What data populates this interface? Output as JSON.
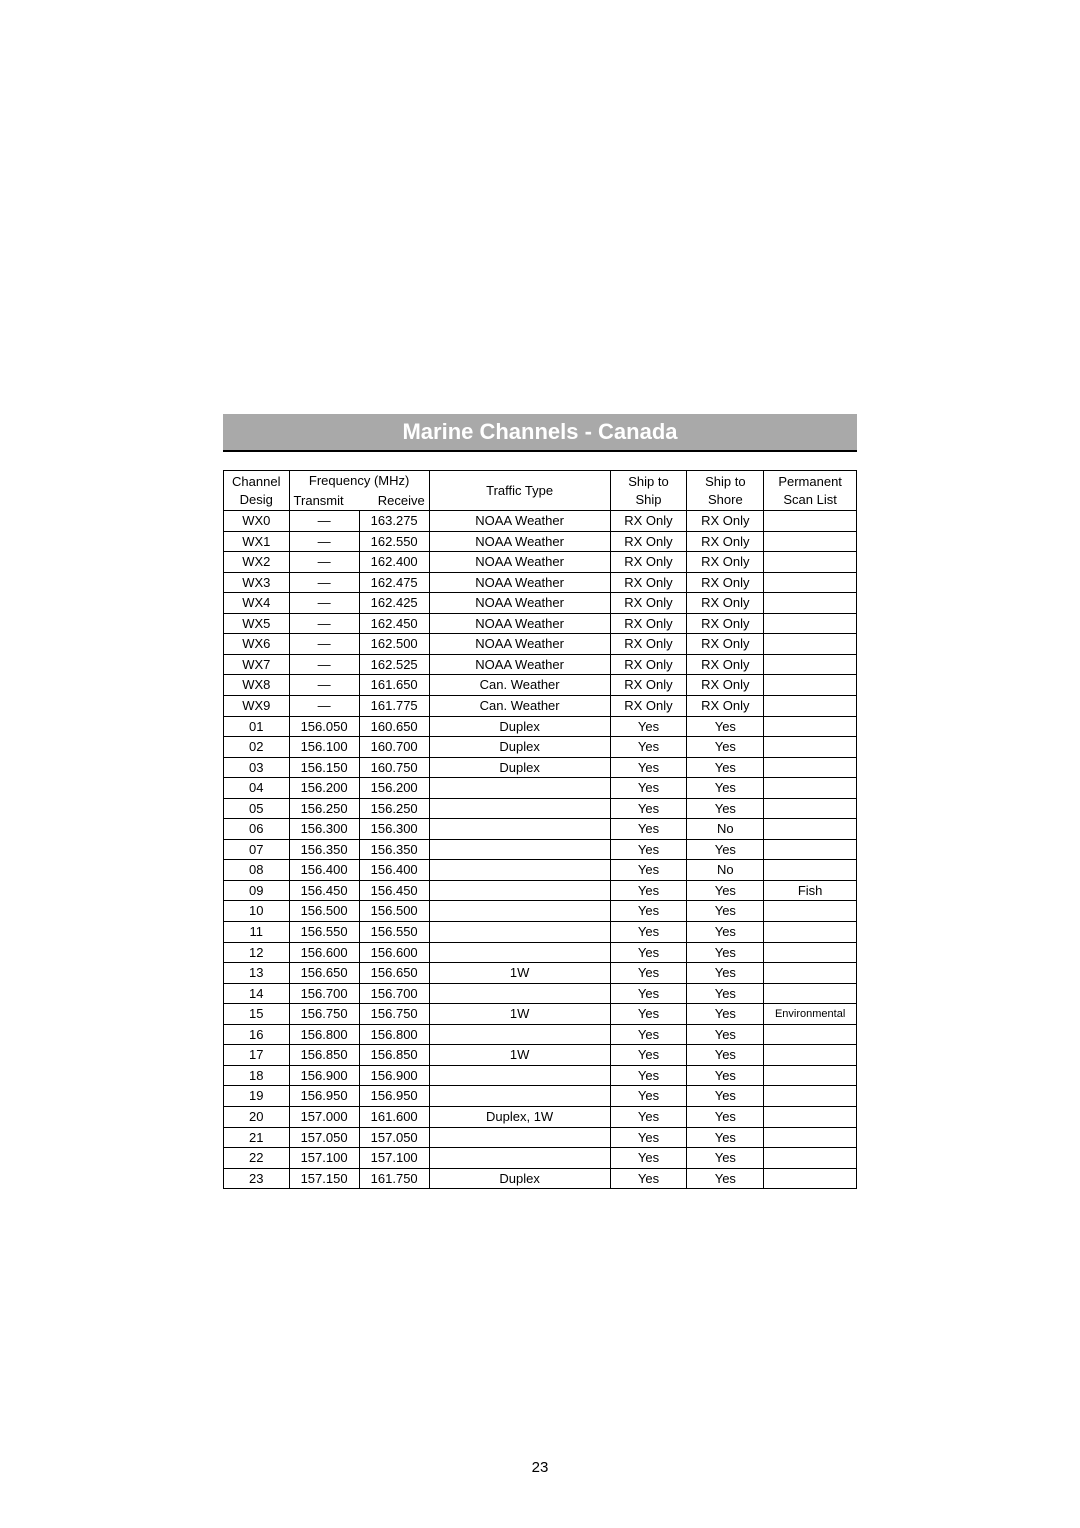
{
  "section": {
    "title": "Marine Channels - Canada"
  },
  "table": {
    "columns": {
      "channel_line1": "Channel",
      "channel_line2": "Desig",
      "freq_line1": "Frequency (MHz)",
      "freq_tx": "Transmit",
      "freq_rx": "Receive",
      "traffic": "Traffic Type",
      "ship_line1": "Ship to",
      "ship_line2": "Ship",
      "shore_line1": "Ship to",
      "shore_line2": "Shore",
      "scan_line1": "Permanent",
      "scan_line2": "Scan List"
    },
    "rows": [
      {
        "ch": "WX0",
        "tx": "—",
        "rx": "163.275",
        "traffic": "NOAA Weather",
        "ship": "RX Only",
        "shore": "RX Only",
        "scan": ""
      },
      {
        "ch": "WX1",
        "tx": "—",
        "rx": "162.550",
        "traffic": "NOAA Weather",
        "ship": "RX Only",
        "shore": "RX Only",
        "scan": ""
      },
      {
        "ch": "WX2",
        "tx": "—",
        "rx": "162.400",
        "traffic": "NOAA Weather",
        "ship": "RX Only",
        "shore": "RX Only",
        "scan": ""
      },
      {
        "ch": "WX3",
        "tx": "—",
        "rx": "162.475",
        "traffic": "NOAA Weather",
        "ship": "RX Only",
        "shore": "RX Only",
        "scan": ""
      },
      {
        "ch": "WX4",
        "tx": "—",
        "rx": "162.425",
        "traffic": "NOAA Weather",
        "ship": "RX Only",
        "shore": "RX Only",
        "scan": ""
      },
      {
        "ch": "WX5",
        "tx": "—",
        "rx": "162.450",
        "traffic": "NOAA Weather",
        "ship": "RX Only",
        "shore": "RX Only",
        "scan": ""
      },
      {
        "ch": "WX6",
        "tx": "—",
        "rx": "162.500",
        "traffic": "NOAA Weather",
        "ship": "RX Only",
        "shore": "RX Only",
        "scan": ""
      },
      {
        "ch": "WX7",
        "tx": "—",
        "rx": "162.525",
        "traffic": "NOAA Weather",
        "ship": "RX Only",
        "shore": "RX Only",
        "scan": ""
      },
      {
        "ch": "WX8",
        "tx": "—",
        "rx": "161.650",
        "traffic": "Can. Weather",
        "ship": "RX Only",
        "shore": "RX Only",
        "scan": ""
      },
      {
        "ch": "WX9",
        "tx": "—",
        "rx": "161.775",
        "traffic": "Can. Weather",
        "ship": "RX Only",
        "shore": "RX Only",
        "scan": ""
      },
      {
        "ch": "01",
        "tx": "156.050",
        "rx": "160.650",
        "traffic": "Duplex",
        "ship": "Yes",
        "shore": "Yes",
        "scan": ""
      },
      {
        "ch": "02",
        "tx": "156.100",
        "rx": "160.700",
        "traffic": "Duplex",
        "ship": "Yes",
        "shore": "Yes",
        "scan": ""
      },
      {
        "ch": "03",
        "tx": "156.150",
        "rx": "160.750",
        "traffic": "Duplex",
        "ship": "Yes",
        "shore": "Yes",
        "scan": ""
      },
      {
        "ch": "04",
        "tx": "156.200",
        "rx": "156.200",
        "traffic": "",
        "ship": "Yes",
        "shore": "Yes",
        "scan": ""
      },
      {
        "ch": "05",
        "tx": "156.250",
        "rx": "156.250",
        "traffic": "",
        "ship": "Yes",
        "shore": "Yes",
        "scan": ""
      },
      {
        "ch": "06",
        "tx": "156.300",
        "rx": "156.300",
        "traffic": "",
        "ship": "Yes",
        "shore": "No",
        "scan": ""
      },
      {
        "ch": "07",
        "tx": "156.350",
        "rx": "156.350",
        "traffic": "",
        "ship": "Yes",
        "shore": "Yes",
        "scan": ""
      },
      {
        "ch": "08",
        "tx": "156.400",
        "rx": "156.400",
        "traffic": "",
        "ship": "Yes",
        "shore": "No",
        "scan": ""
      },
      {
        "ch": "09",
        "tx": "156.450",
        "rx": "156.450",
        "traffic": "",
        "ship": "Yes",
        "shore": "Yes",
        "scan": "Fish"
      },
      {
        "ch": "10",
        "tx": "156.500",
        "rx": "156.500",
        "traffic": "",
        "ship": "Yes",
        "shore": "Yes",
        "scan": ""
      },
      {
        "ch": "11",
        "tx": "156.550",
        "rx": "156.550",
        "traffic": "",
        "ship": "Yes",
        "shore": "Yes",
        "scan": ""
      },
      {
        "ch": "12",
        "tx": "156.600",
        "rx": "156.600",
        "traffic": "",
        "ship": "Yes",
        "shore": "Yes",
        "scan": ""
      },
      {
        "ch": "13",
        "tx": "156.650",
        "rx": "156.650",
        "traffic": "1W",
        "ship": "Yes",
        "shore": "Yes",
        "scan": ""
      },
      {
        "ch": "14",
        "tx": "156.700",
        "rx": "156.700",
        "traffic": "",
        "ship": "Yes",
        "shore": "Yes",
        "scan": ""
      },
      {
        "ch": "15",
        "tx": "156.750",
        "rx": "156.750",
        "traffic": "1W",
        "ship": "Yes",
        "shore": "Yes",
        "scan": "Environmental",
        "scan_small": true
      },
      {
        "ch": "16",
        "tx": "156.800",
        "rx": "156.800",
        "traffic": "",
        "ship": "Yes",
        "shore": "Yes",
        "scan": ""
      },
      {
        "ch": "17",
        "tx": "156.850",
        "rx": "156.850",
        "traffic": "1W",
        "ship": "Yes",
        "shore": "Yes",
        "scan": ""
      },
      {
        "ch": "18",
        "tx": "156.900",
        "rx": "156.900",
        "traffic": "",
        "ship": "Yes",
        "shore": "Yes",
        "scan": ""
      },
      {
        "ch": "19",
        "tx": "156.950",
        "rx": "156.950",
        "traffic": "",
        "ship": "Yes",
        "shore": "Yes",
        "scan": ""
      },
      {
        "ch": "20",
        "tx": "157.000",
        "rx": "161.600",
        "traffic": "Duplex, 1W",
        "ship": "Yes",
        "shore": "Yes",
        "scan": ""
      },
      {
        "ch": "21",
        "tx": "157.050",
        "rx": "157.050",
        "traffic": "",
        "ship": "Yes",
        "shore": "Yes",
        "scan": ""
      },
      {
        "ch": "22",
        "tx": "157.100",
        "rx": "157.100",
        "traffic": "",
        "ship": "Yes",
        "shore": "Yes",
        "scan": ""
      },
      {
        "ch": "23",
        "tx": "157.150",
        "rx": "161.750",
        "traffic": "Duplex",
        "ship": "Yes",
        "shore": "Yes",
        "scan": ""
      }
    ]
  },
  "page": {
    "number": "23"
  }
}
